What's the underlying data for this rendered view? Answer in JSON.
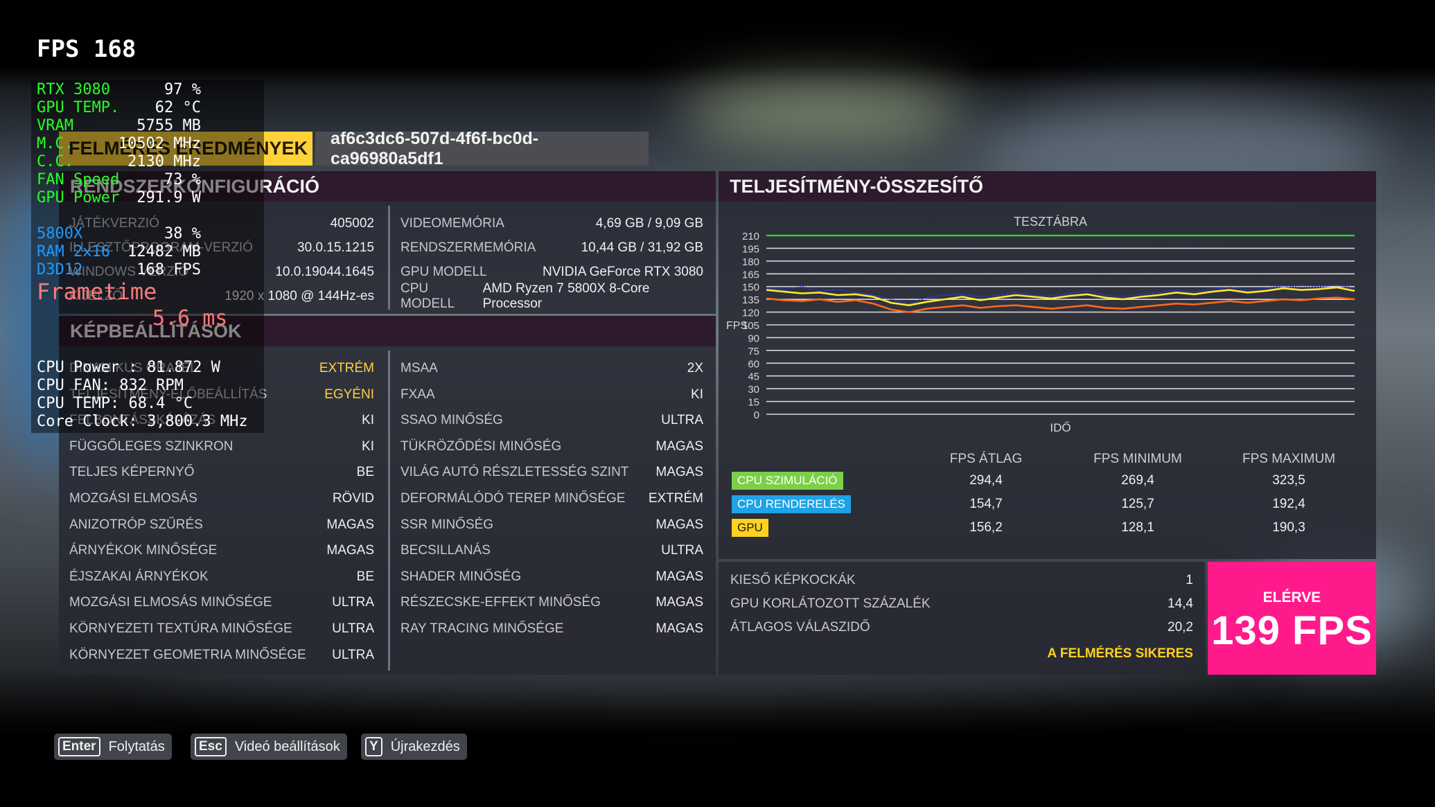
{
  "overlay": {
    "fps_line": "FPS 168",
    "gpu_rows": [
      {
        "label": "RTX 3080",
        "value": "97 %"
      },
      {
        "label": "GPU TEMP.",
        "value": "62 °C"
      },
      {
        "label": "VRAM",
        "value": "5755 MB"
      },
      {
        "label": "M.C.",
        "value": "10502 MHz"
      },
      {
        "label": "C.C.",
        "value": "2130 MHz"
      },
      {
        "label": "FAN Speed",
        "value": "73 %"
      },
      {
        "label": "GPU Power",
        "value": "291.9 W"
      }
    ],
    "cpu_rows": [
      {
        "label": "5800X",
        "value": "38 %"
      },
      {
        "label": "RAM 2x16",
        "value": "12482 MB"
      },
      {
        "label": "D3D12",
        "value": "168 FPS"
      }
    ],
    "frametime_label": "Frametime",
    "frametime_value": "5.6 ms",
    "white_rows": [
      "CPU Power : 81.872 W",
      "CPU FAN: 832 RPM",
      "CPU TEMP: 68.4 °C",
      "Core Clock: 3,800.3 MHz"
    ]
  },
  "header": {
    "results_tag": "FELMÉRÉS EREDMÉNYEK",
    "run_id": "af6c3dc6-507d-4f6f-bc0d-ca96980a5df1"
  },
  "system_config": {
    "title": "RENDSZERKONFIGURÁCIÓ",
    "left": [
      {
        "key": "JÁTÉKVERZIÓ",
        "value": "405002"
      },
      {
        "key": "ILLESZTŐPROGRAM-VERZIÓ",
        "value": "30.0.15.1215"
      },
      {
        "key": "WINDOWS VERZIÓ",
        "value": "10.0.19044.1645"
      },
      {
        "key": "KIJELZŐ",
        "value": "1920 x 1080 @ 144Hz-es"
      }
    ],
    "right": [
      {
        "key": "VIDEOMEMÓRIA",
        "value": "4,69 GB / 9,09 GB"
      },
      {
        "key": "RENDSZERMEMÓRIA",
        "value": "10,44 GB / 31,92 GB"
      },
      {
        "key": "GPU MODELL",
        "value": "NVIDIA GeForce RTX 3080"
      },
      {
        "key": "CPU MODELL",
        "value": "AMD Ryzen 7 5800X 8-Core Processor"
      }
    ]
  },
  "image_settings": {
    "title": "KÉPBEÁLLÍTÁSOK",
    "left": [
      {
        "key": "DINAMIKUS ÓRAJEL",
        "value": "EXTRÉM",
        "highlight": true
      },
      {
        "key": "TELJESÍTMÉNY-ELŐBEÁLLÍTÁS",
        "value": "EGYÉNI",
        "highlight": true
      },
      {
        "key": "FELBONTÁSSKÁLÁZÁS",
        "value": "KI"
      },
      {
        "key": "FÜGGŐLEGES SZINKRON",
        "value": "KI"
      },
      {
        "key": "TELJES KÉPERNYŐ",
        "value": "BE"
      },
      {
        "key": "MOZGÁSI ELMOSÁS",
        "value": "RÖVID"
      },
      {
        "key": "ANIZOTRÓP SZŰRÉS",
        "value": "MAGAS"
      },
      {
        "key": "ÁRNYÉKOK MINŐSÉGE",
        "value": "MAGAS"
      },
      {
        "key": "ÉJSZAKAI ÁRNYÉKOK",
        "value": "BE"
      },
      {
        "key": "MOZGÁSI ELMOSÁS MINŐSÉGE",
        "value": "ULTRA"
      },
      {
        "key": "KÖRNYEZETI TEXTÚRA MINŐSÉGE",
        "value": "ULTRA"
      },
      {
        "key": "KÖRNYEZET GEOMETRIA MINŐSÉGE",
        "value": "ULTRA"
      }
    ],
    "right": [
      {
        "key": "MSAA",
        "value": "2X"
      },
      {
        "key": "FXAA",
        "value": "KI"
      },
      {
        "key": "SSAO MINŐSÉG",
        "value": "ULTRA"
      },
      {
        "key": "TÜKRÖZŐDÉSI MINŐSÉG",
        "value": "MAGAS"
      },
      {
        "key": "VILÁG AUTÓ RÉSZLETESSÉG SZINT",
        "value": "MAGAS"
      },
      {
        "key": "DEFORMÁLÓDÓ TEREP MINŐSÉGE",
        "value": "EXTRÉM"
      },
      {
        "key": "SSR MINŐSÉG",
        "value": "MAGAS"
      },
      {
        "key": "BECSILLANÁS",
        "value": "ULTRA"
      },
      {
        "key": "SHADER MINŐSÉG",
        "value": "MAGAS"
      },
      {
        "key": "RÉSZECSKE-EFFEKT MINŐSÉG",
        "value": "MAGAS"
      },
      {
        "key": "RAY TRACING MINŐSÉGE",
        "value": "MAGAS"
      }
    ]
  },
  "performance": {
    "title": "TELJESÍTMÉNY-ÖSSZESÍTŐ",
    "chart_title": "TESZTÁBRA",
    "y_axis_label": "FPS",
    "x_axis_label": "IDŐ",
    "y_ticks": [
      "210",
      "195",
      "180",
      "165",
      "150",
      "135",
      "120",
      "105",
      "90",
      "75",
      "60",
      "45",
      "30",
      "15",
      "0"
    ],
    "columns": [
      "FPS ÁTLAG",
      "FPS MINIMUM",
      "FPS MAXIMUM"
    ],
    "rows": [
      {
        "label": "CPU SZIMULÁCIÓ",
        "color": "#7ccf48",
        "text_color": "#ffffff",
        "avg": "294,4",
        "min": "269,4",
        "max": "323,5"
      },
      {
        "label": "CPU RENDERELÉS",
        "color": "#1fa3e8",
        "text_color": "#ffffff",
        "avg": "154,7",
        "min": "125,7",
        "max": "192,4"
      },
      {
        "label": "GPU",
        "color": "#ffd21f",
        "text_color": "#1a1a1a",
        "avg": "156,2",
        "min": "128,1",
        "max": "190,3"
      }
    ],
    "extra": [
      {
        "key": "KIESŐ KÉPKOCKÁK",
        "value": "1"
      },
      {
        "key": "GPU KORLÁTOZOTT SZÁZALÉK",
        "value": "14,4"
      },
      {
        "key": "ÁTLAGOS VÁLASZIDŐ",
        "value": "20,2"
      }
    ],
    "success": "A FELMÉRÉS SIKERES",
    "achieved_label": "ELÉRVE",
    "achieved_value": "139 FPS"
  },
  "chart_data": {
    "type": "line",
    "title": "TESZTÁBRA",
    "xlabel": "IDŐ",
    "ylabel": "FPS",
    "ylim": [
      0,
      210
    ],
    "grid": true,
    "series": [
      {
        "name": "",
        "color": "#35c935",
        "values": [
          210,
          210
        ]
      },
      {
        "name": "",
        "color": "#ffea2a",
        "values": [
          146,
          144,
          142,
          143,
          140,
          141,
          138,
          131,
          128,
          132,
          135,
          138,
          134,
          137,
          140,
          138,
          136,
          139,
          141,
          137,
          135,
          138,
          140,
          143,
          141,
          144,
          146,
          143,
          145,
          148,
          146,
          147,
          149,
          145
        ]
      },
      {
        "name": "",
        "color": "#ff6a1a",
        "values": [
          136,
          134,
          133,
          135,
          132,
          134,
          130,
          123,
          120,
          124,
          126,
          128,
          125,
          127,
          128,
          126,
          124,
          126,
          128,
          125,
          124,
          126,
          128,
          130,
          129,
          131,
          133,
          131,
          133,
          135,
          134,
          136,
          137,
          135
        ]
      },
      {
        "name": "",
        "color": "#2a3aff",
        "values": [
          148,
          147,
          150,
          145,
          146,
          143,
          140,
          135,
          130,
          137,
          140,
          141,
          138,
          140,
          143,
          140,
          139,
          142,
          145,
          140,
          138,
          141,
          143,
          146,
          144,
          147,
          149,
          146,
          148,
          151,
          149,
          150,
          152,
          148
        ]
      }
    ]
  },
  "footer": {
    "buttons": [
      {
        "key": "Enter",
        "label": "Folytatás"
      },
      {
        "key": "Esc",
        "label": "Videó beállítások"
      },
      {
        "key": "Y",
        "label": "Újrakezdés"
      }
    ]
  }
}
